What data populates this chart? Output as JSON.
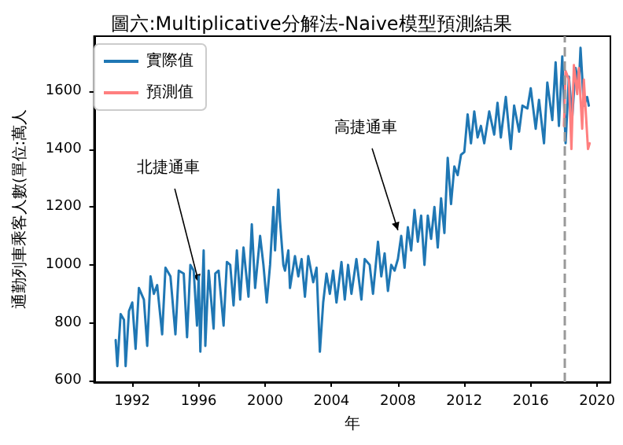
{
  "chart_data": {
    "type": "line",
    "title": "圖六:Multiplicative分解法-Naive模型預測結果",
    "xlabel": "年",
    "ylabel": "通勤列車乘客人數(單位:萬人",
    "xlim": [
      1989.7,
      2020.8
    ],
    "xticks": [
      1992,
      1996,
      2000,
      2004,
      2008,
      2012,
      2016,
      2020
    ],
    "ylim": [
      595,
      1790
    ],
    "yticks": [
      600,
      800,
      1000,
      1200,
      1400,
      1600
    ],
    "grid": false,
    "legend": "top left",
    "marker": "none",
    "line_style": "solid",
    "ref_lines": [
      {
        "axis": "x",
        "value": 2018.0,
        "color": "#999999",
        "line_style": "dashed"
      }
    ],
    "annotations": [
      {
        "text": "北捷通車",
        "x": 1996.0,
        "y": 940
      },
      {
        "text": "高捷通車",
        "x": 2008.0,
        "y": 1120
      }
    ],
    "series": [
      {
        "name": "實際值",
        "color": "#1f77b4",
        "x": [
          1991.0,
          1991.1,
          1991.3,
          1991.5,
          1991.6,
          1991.8,
          1992.0,
          1992.2,
          1992.4,
          1992.7,
          1992.9,
          1993.1,
          1993.3,
          1993.5,
          1993.8,
          1994.0,
          1994.3,
          1994.6,
          1994.8,
          1995.1,
          1995.3,
          1995.5,
          1995.7,
          1995.9,
          1996.0,
          1996.1,
          1996.3,
          1996.4,
          1996.6,
          1996.9,
          1997.0,
          1997.2,
          1997.5,
          1997.7,
          1997.9,
          1998.1,
          1998.3,
          1998.5,
          1998.7,
          1999.0,
          1999.2,
          1999.4,
          1999.7,
          1999.9,
          2000.1,
          2000.3,
          2000.5,
          2000.6,
          2000.8,
          2000.9,
          2001.1,
          2001.2,
          2001.4,
          2001.5,
          2001.8,
          2002.0,
          2002.2,
          2002.4,
          2002.6,
          2002.9,
          2003.1,
          2003.3,
          2003.5,
          2003.7,
          2003.9,
          2004.1,
          2004.3,
          2004.6,
          2004.8,
          2005.0,
          2005.2,
          2005.5,
          2005.8,
          2006.0,
          2006.3,
          2006.5,
          2006.8,
          2007.0,
          2007.2,
          2007.4,
          2007.6,
          2007.8,
          2008.0,
          2008.2,
          2008.4,
          2008.6,
          2008.8,
          2009.0,
          2009.2,
          2009.4,
          2009.6,
          2009.8,
          2010.0,
          2010.2,
          2010.4,
          2010.6,
          2010.8,
          2011.0,
          2011.2,
          2011.4,
          2011.6,
          2011.8,
          2012.0,
          2012.2,
          2012.4,
          2012.6,
          2012.8,
          2013.0,
          2013.2,
          2013.5,
          2013.8,
          2014.0,
          2014.2,
          2014.5,
          2014.8,
          2015.0,
          2015.3,
          2015.5,
          2015.8,
          2016.0,
          2016.3,
          2016.5,
          2016.8,
          2017.0,
          2017.3,
          2017.5,
          2017.7,
          2017.9,
          2018.1,
          2018.3,
          2018.5,
          2018.7,
          2018.9,
          2019.0,
          2019.2,
          2019.4,
          2019.5
        ],
        "values": [
          740,
          650,
          830,
          810,
          650,
          840,
          870,
          710,
          920,
          880,
          720,
          960,
          900,
          930,
          760,
          990,
          960,
          760,
          980,
          970,
          750,
          1000,
          980,
          790,
          960,
          700,
          1050,
          720,
          980,
          780,
          970,
          980,
          790,
          1010,
          1000,
          860,
          1050,
          880,
          1060,
          890,
          1140,
          920,
          1100,
          1000,
          870,
          1000,
          1200,
          1050,
          1260,
          1150,
          1000,
          980,
          1050,
          920,
          1030,
          960,
          1020,
          890,
          1030,
          940,
          990,
          700,
          870,
          970,
          900,
          980,
          870,
          1010,
          880,
          1000,
          900,
          1020,
          880,
          1020,
          1000,
          900,
          1080,
          960,
          1040,
          910,
          1000,
          980,
          1020,
          1100,
          990,
          1130,
          1050,
          1190,
          1080,
          1170,
          1000,
          1170,
          1090,
          1200,
          1060,
          1230,
          1110,
          1370,
          1210,
          1340,
          1310,
          1380,
          1390,
          1520,
          1420,
          1530,
          1440,
          1480,
          1420,
          1530,
          1450,
          1560,
          1440,
          1580,
          1400,
          1550,
          1460,
          1550,
          1540,
          1610,
          1470,
          1570,
          1420,
          1630,
          1500,
          1700,
          1480,
          1720,
          1420,
          1650,
          1510,
          1680,
          1620,
          1750,
          1550,
          1580,
          1550
        ]
      },
      {
        "name": "預測值",
        "color": "#ff7f7f",
        "x": [
          2018.0,
          2018.1,
          2018.3,
          2018.45,
          2018.6,
          2018.8,
          2018.9,
          2019.1,
          2019.2,
          2019.45,
          2019.55
        ],
        "values": [
          1480,
          1670,
          1640,
          1400,
          1690,
          1590,
          1680,
          1470,
          1640,
          1400,
          1420
        ]
      }
    ]
  }
}
